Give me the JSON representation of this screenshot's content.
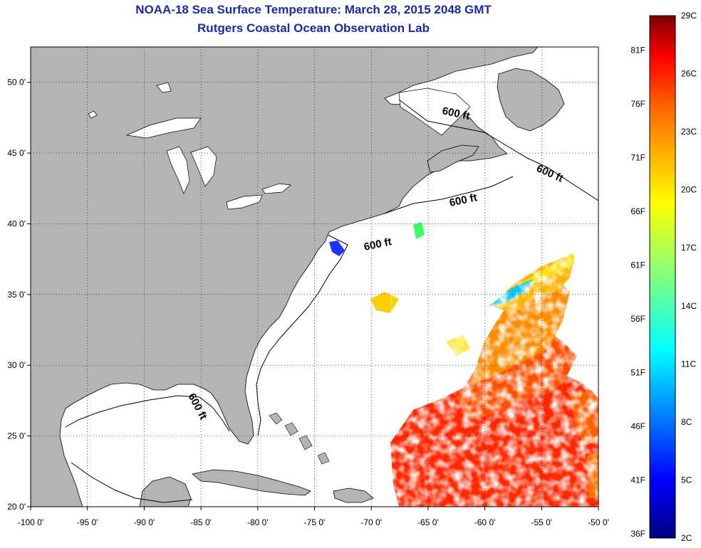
{
  "title": {
    "line1": "NOAA-18 Sea Surface Temperature:  March 28, 2015 2048 GMT",
    "line2": "Rutgers Coastal Ocean Observation Lab"
  },
  "map": {
    "lon_range": [
      -100,
      -50
    ],
    "lat_range": [
      20,
      52.5
    ],
    "lon_ticks": [
      "-100 0'",
      "-95 0'",
      "-90 0'",
      "-85 0'",
      "-80 0'",
      "-75 0'",
      "-70 0'",
      "-65 0'",
      "-60 0'",
      "-55 0'",
      "-50 0'"
    ],
    "lon_values": [
      -100,
      -95,
      -90,
      -85,
      -80,
      -75,
      -70,
      -65,
      -60,
      -55,
      -50
    ],
    "lat_ticks": [
      "20 0'",
      "25 0'",
      "30 0'",
      "35 0'",
      "40 0'",
      "45 0'",
      "50 0'"
    ],
    "lat_values": [
      20,
      25,
      30,
      35,
      40,
      45,
      50
    ],
    "grid": "dotted",
    "land_color": "#b4b4b4",
    "ocean_color": "#ffffff",
    "contour_labels": [
      "600 ft",
      "600 ft",
      "600 ft",
      "600 ft",
      "600 ft"
    ]
  },
  "colorbar": {
    "celsius_labels": [
      "29C",
      "26C",
      "23C",
      "20C",
      "17C",
      "14C",
      "11C",
      "8C",
      "5C",
      "2C"
    ],
    "celsius_values": [
      29,
      26,
      23,
      20,
      17,
      14,
      11,
      8,
      5,
      2
    ],
    "fahrenheit_labels": [
      "81F",
      "76F",
      "71F",
      "66F",
      "61F",
      "56F",
      "51F",
      "46F",
      "41F",
      "36F"
    ],
    "fahrenheit_values": [
      81,
      76,
      71,
      66,
      61,
      56,
      51,
      46,
      41,
      36
    ],
    "range_c": [
      2,
      29
    ],
    "colors": [
      "#00007f",
      "#0000ff",
      "#007fff",
      "#00ffff",
      "#7fff7f",
      "#ffff00",
      "#ff7f00",
      "#ff0000",
      "#7f0000"
    ]
  }
}
